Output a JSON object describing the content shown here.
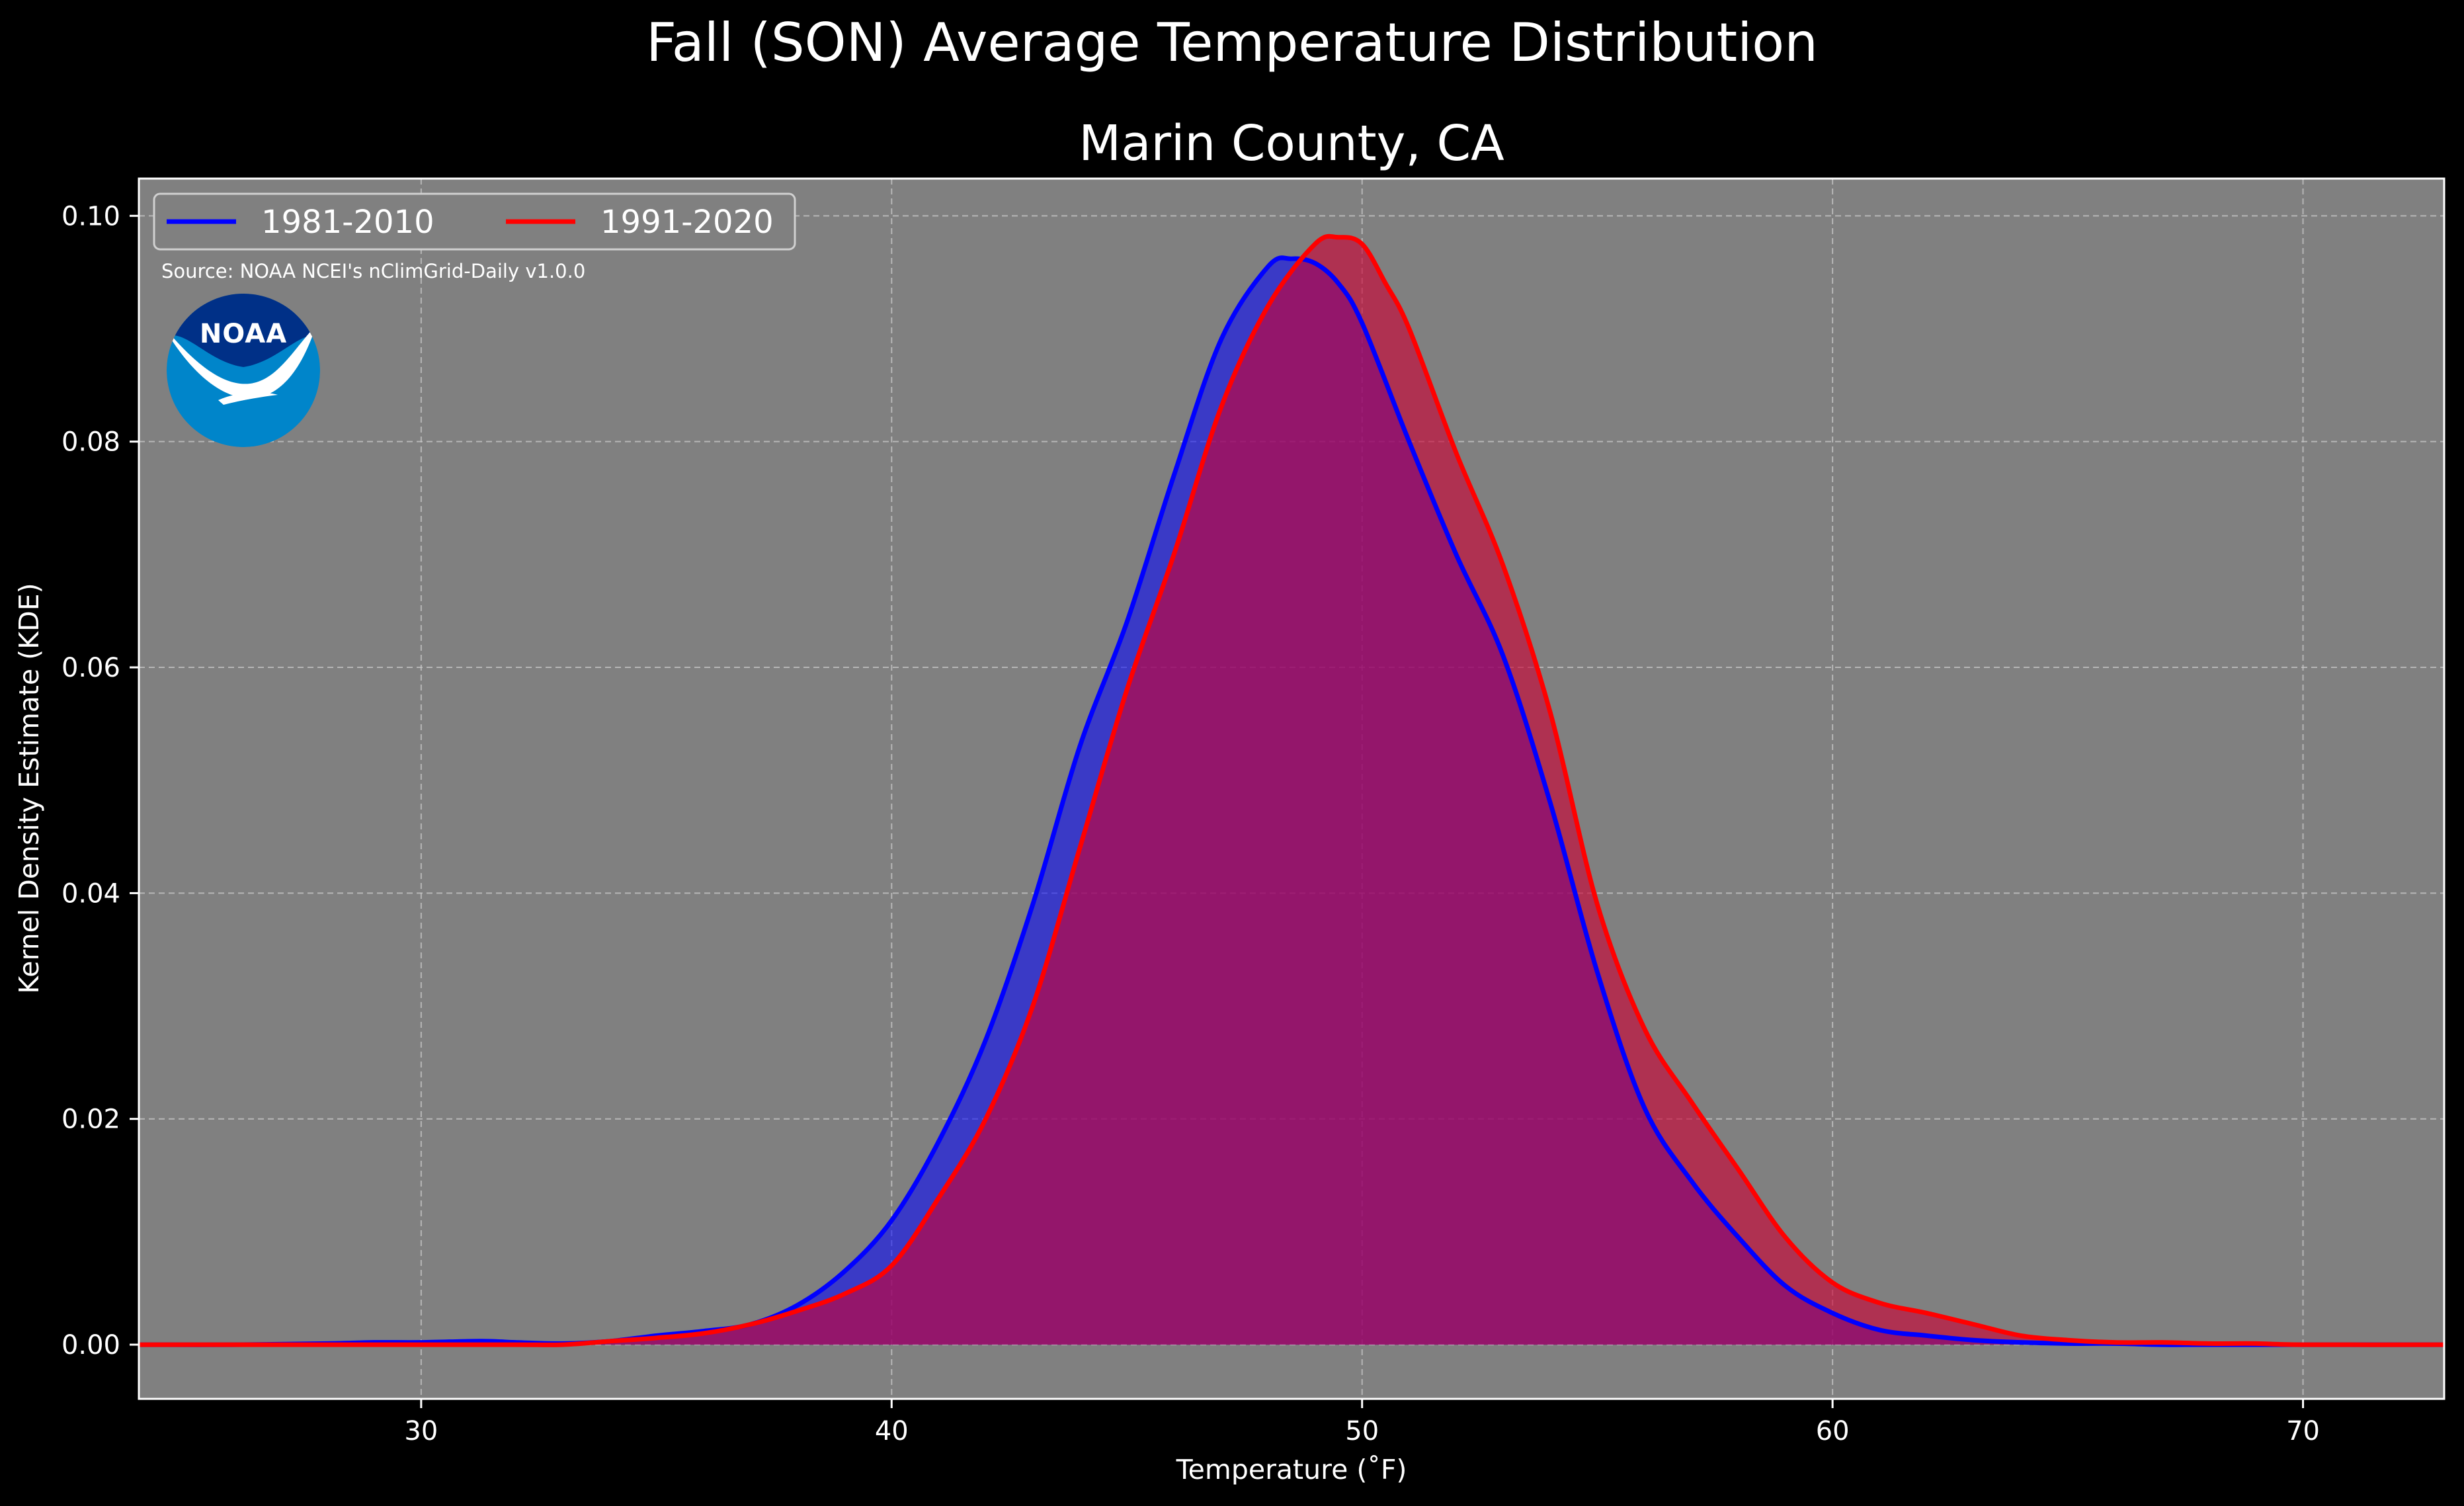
{
  "chart_data": {
    "type": "area",
    "suptitle": "Fall (SON) Average Temperature Distribution",
    "title": "Marin County, CA",
    "xlabel": "Temperature (˚F)",
    "ylabel": "Kernel Density Estimate (KDE)",
    "xlim": [
      24,
      73
    ],
    "ylim": [
      -0.0048,
      0.1033
    ],
    "xticks": [
      30,
      40,
      50,
      60,
      70
    ],
    "xtick_labels": [
      "30",
      "40",
      "50",
      "60",
      "70"
    ],
    "yticks": [
      0,
      0.02,
      0.04,
      0.06,
      0.08,
      0.1
    ],
    "ytick_labels": [
      "0.00",
      "0.02",
      "0.04",
      "0.06",
      "0.08",
      "0.10"
    ],
    "grid": true,
    "legend_position": "top-left",
    "source_note": "Source: NOAA NCEI's nClimGrid-Daily v1.0.0",
    "logo_text": "NOAA",
    "background_color": "#808080",
    "series": [
      {
        "name": "1981-2010",
        "color": "#0000ff",
        "fill_color": "#0000ff",
        "fill_opacity": 0.55,
        "x": [
          24,
          26,
          28,
          29,
          30,
          31,
          31.5,
          32,
          33,
          34,
          35,
          36,
          37,
          38,
          39,
          40,
          41,
          42,
          43,
          44,
          45,
          46,
          47,
          48,
          48.5,
          49,
          49.5,
          50,
          51,
          52,
          53,
          54,
          55,
          56,
          57,
          58,
          59,
          60,
          61,
          62,
          63,
          64,
          65,
          66,
          67,
          68,
          70,
          73
        ],
        "y": [
          0,
          0,
          0.0001,
          0.0002,
          0.0002,
          0.0003,
          0.0003,
          0.0002,
          0.0001,
          0.0003,
          0.0008,
          0.0012,
          0.0018,
          0.0035,
          0.0065,
          0.011,
          0.018,
          0.027,
          0.039,
          0.053,
          0.064,
          0.077,
          0.089,
          0.0955,
          0.0962,
          0.0958,
          0.094,
          0.0905,
          0.08,
          0.07,
          0.061,
          0.048,
          0.033,
          0.021,
          0.0145,
          0.0095,
          0.0052,
          0.0028,
          0.0013,
          0.0008,
          0.0004,
          0.0002,
          0.0001,
          0.0001,
          0,
          0,
          0,
          0
        ]
      },
      {
        "name": "1991-2020",
        "color": "#ff0000",
        "fill_color": "#cc0033",
        "fill_opacity": 0.62,
        "x": [
          24,
          26,
          28,
          30,
          32,
          33,
          34,
          35,
          36,
          37,
          38,
          39,
          40,
          41,
          42,
          43,
          44,
          45,
          46,
          47,
          48,
          49,
          49.5,
          50,
          50.5,
          51,
          52,
          53,
          54,
          55,
          56,
          57,
          58,
          59,
          60,
          61,
          62,
          63,
          64,
          65,
          66,
          67,
          68,
          69,
          70,
          73
        ],
        "y": [
          0,
          0,
          0,
          0,
          0,
          0,
          0.0003,
          0.0006,
          0.001,
          0.0018,
          0.003,
          0.0045,
          0.007,
          0.013,
          0.02,
          0.03,
          0.044,
          0.058,
          0.07,
          0.083,
          0.092,
          0.0975,
          0.0981,
          0.0975,
          0.094,
          0.09,
          0.079,
          0.069,
          0.056,
          0.039,
          0.028,
          0.0215,
          0.0155,
          0.0095,
          0.0055,
          0.0037,
          0.0028,
          0.0018,
          0.0008,
          0.0004,
          0.0002,
          0.0002,
          0.0001,
          0.0001,
          0,
          0
        ]
      }
    ]
  }
}
